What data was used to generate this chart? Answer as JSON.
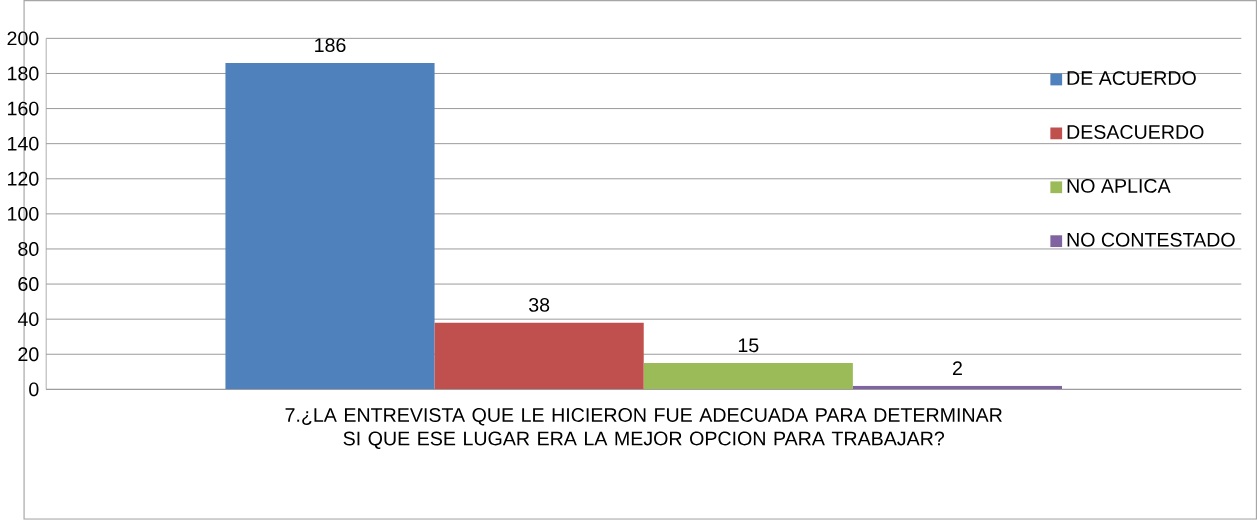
{
  "chart_data": {
    "type": "bar",
    "categories": [
      "7.¿LA ENTREVISTA QUE LE HICIERON FUE ADECUADA PARA DETERMINAR SI QUE ESE LUGAR ERA LA MEJOR OPCION PARA TRABAJAR?"
    ],
    "series": [
      {
        "name": "DE ACUERDO",
        "color": "#4f81bd",
        "values": [
          186
        ]
      },
      {
        "name": "DESACUERDO",
        "color": "#c0504d",
        "values": [
          38
        ]
      },
      {
        "name": "NO APLICA",
        "color": "#9bbb59",
        "values": [
          15
        ]
      },
      {
        "name": "NO CONTESTADO",
        "color": "#8064a2",
        "values": [
          2
        ]
      }
    ],
    "ylim": [
      0,
      200
    ],
    "yticks": [
      0,
      20,
      40,
      60,
      80,
      100,
      120,
      140,
      160,
      180,
      200
    ],
    "grid": "y",
    "legend": "right",
    "data_labels": true
  }
}
